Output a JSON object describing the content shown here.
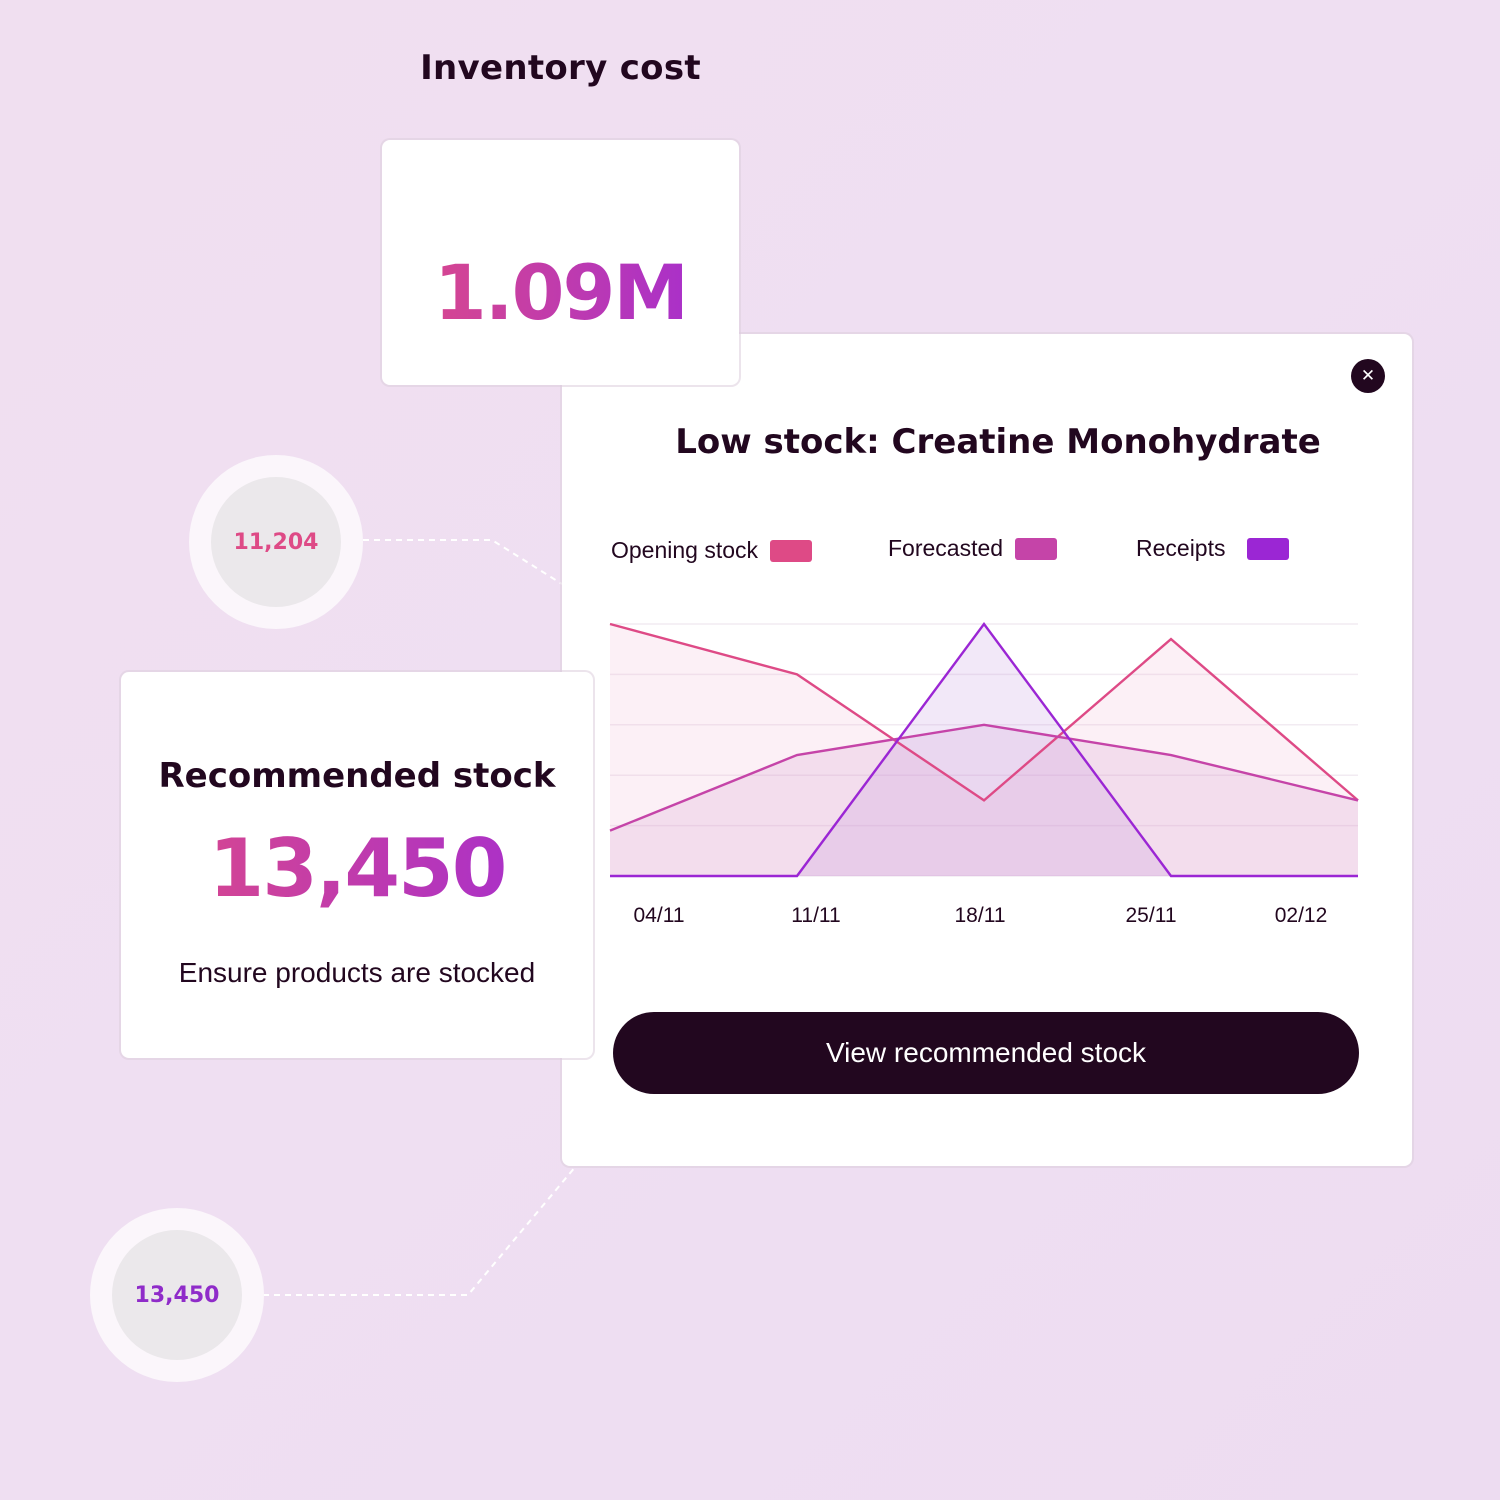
{
  "inventory_cost": {
    "title": "Inventory cost",
    "value": "1.09M"
  },
  "low_stock": {
    "title": "Low stock: Creatine Monohydrate",
    "close_icon": "close-icon",
    "legend": [
      {
        "label": "Opening stock",
        "color": "#de4a86"
      },
      {
        "label": "Forecasted",
        "color": "#c544a8"
      },
      {
        "label": "Receipts",
        "color": "#9b26d4"
      }
    ],
    "button_label": "View recommended stock"
  },
  "recommended": {
    "title": "Recommended stock",
    "value": "13,450",
    "subtitle": "Ensure products are stocked"
  },
  "bubbles": {
    "top": "11,204",
    "bottom": "13,450"
  },
  "chart_data": {
    "type": "area",
    "x_ticks": [
      "04/11",
      "11/11",
      "18/11",
      "25/11",
      "02/12"
    ],
    "ylim": [
      0,
      5
    ],
    "grid": true,
    "series": [
      {
        "name": "Opening stock",
        "color": "#de4a86",
        "x": [
          0,
          1,
          2,
          3,
          4
        ],
        "values": [
          5.0,
          4.0,
          1.5,
          4.7,
          1.5
        ]
      },
      {
        "name": "Forecasted",
        "color": "#c544a8",
        "x": [
          0,
          1,
          2,
          3,
          4
        ],
        "values": [
          0.9,
          2.4,
          3.0,
          2.4,
          1.5
        ]
      },
      {
        "name": "Receipts",
        "color": "#9b26d4",
        "x": [
          0,
          1,
          2,
          3,
          4
        ],
        "values": [
          0,
          0,
          5.0,
          0,
          0
        ]
      }
    ]
  }
}
